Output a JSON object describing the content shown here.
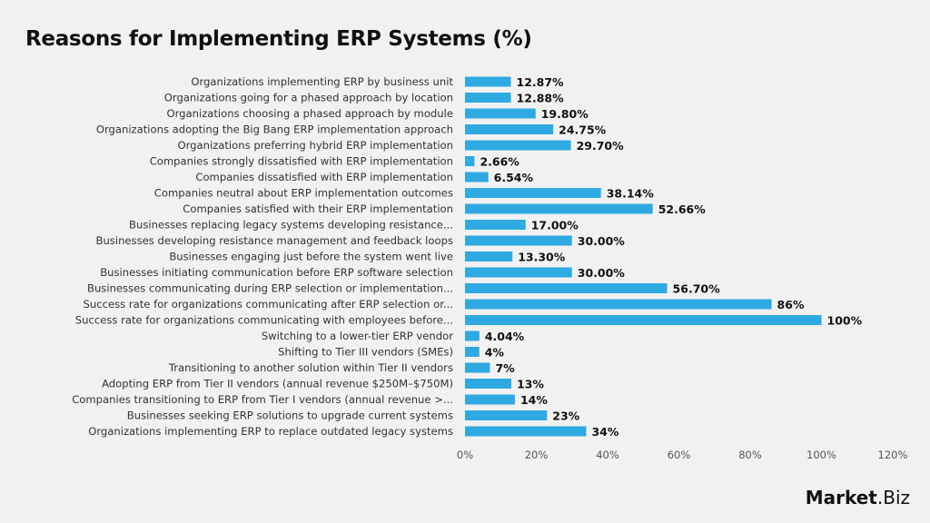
{
  "chart_data": {
    "type": "bar",
    "orientation": "horizontal",
    "title": "Reasons for Implementing ERP Systems (%)",
    "xlim": [
      0,
      120
    ],
    "xticks": [
      "0%",
      "20%",
      "40%",
      "60%",
      "80%",
      "100%",
      "120%"
    ],
    "grid": false,
    "bar_color": "#2fa9e1",
    "categories": [
      "Organizations implementing ERP by business unit",
      "Organizations going for a phased approach by location",
      "Organizations choosing a phased approach by module",
      "Organizations adopting the Big Bang ERP implementation approach",
      "Organizations preferring hybrid ERP implementation",
      "Companies strongly dissatisfied with ERP implementation",
      "Companies dissatisfied with ERP implementation",
      "Companies neutral about ERP implementation outcomes",
      "Companies satisfied with their ERP implementation",
      "Businesses replacing legacy systems developing resistance...",
      "Businesses developing resistance management and feedback loops",
      "Businesses engaging just before the system went live",
      "Businesses initiating communication before ERP software selection",
      "Businesses communicating during ERP selection or implementation...",
      "Success rate for organizations communicating after ERP selection or...",
      "Success rate for organizations communicating with employees before...",
      "Switching to a lower-tier ERP vendor",
      "Shifting to Tier III vendors (SMEs)",
      "Transitioning to another solution within Tier II vendors",
      "Adopting ERP from Tier II vendors (annual revenue $250M–$750M)",
      "Companies transitioning to ERP from Tier I vendors (annual revenue >...",
      "Businesses seeking ERP solutions to upgrade current systems",
      "Organizations implementing ERP to replace outdated legacy systems"
    ],
    "values": [
      12.87,
      12.88,
      19.8,
      24.75,
      29.7,
      2.66,
      6.54,
      38.14,
      52.66,
      17.0,
      30.0,
      13.3,
      30.0,
      56.7,
      86,
      100,
      4.04,
      4,
      7,
      13,
      14,
      23,
      34
    ],
    "data_labels": [
      "12.87%",
      "12.88%",
      "19.80%",
      "24.75%",
      "29.70%",
      "2.66%",
      "6.54%",
      "38.14%",
      "52.66%",
      "17.00%",
      "30.00%",
      "13.30%",
      "30.00%",
      "56.70%",
      "86%",
      "100%",
      "4.04%",
      "4%",
      "7%",
      "13%",
      "14%",
      "23%",
      "34%"
    ]
  },
  "branding": {
    "logo_text": "Market.Biz",
    "logo_part1": "Market",
    "logo_part2": ".Biz"
  }
}
